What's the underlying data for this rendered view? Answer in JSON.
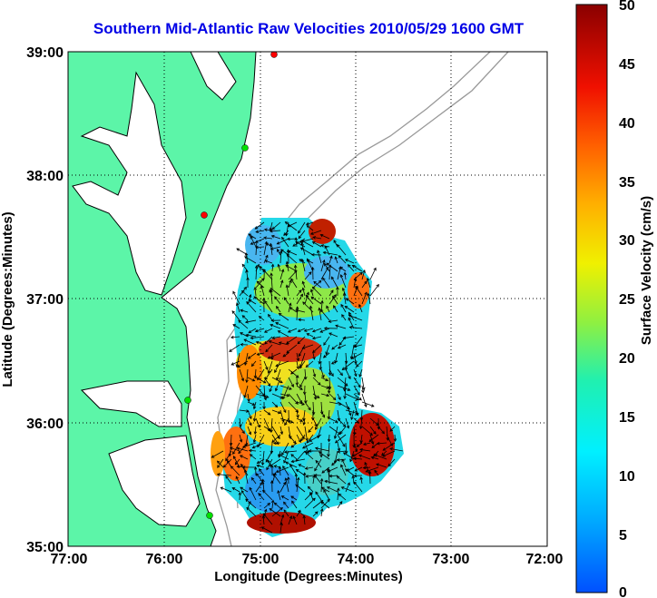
{
  "title": "Southern Mid-Atlantic Raw Velocities 2010/05/29 1600 GMT",
  "x_axis": {
    "label": "Longitude (Degrees:Minutes)",
    "ticks": [
      "77:00",
      "76:00",
      "75:00",
      "74:00",
      "73:00",
      "72:00"
    ]
  },
  "y_axis": {
    "label": "Latitude (Degrees:Minutes)",
    "ticks": [
      "39:00",
      "38:00",
      "37:00",
      "36:00",
      "35:00"
    ]
  },
  "colorbar": {
    "label": "Surface Velocity (cm/s)",
    "ticks": [
      "50",
      "45",
      "40",
      "35",
      "30",
      "25",
      "20",
      "15",
      "10",
      "5",
      "0"
    ],
    "range": [
      0,
      50
    ]
  },
  "extent": {
    "lon": [
      -77,
      -72
    ],
    "lat": [
      35,
      39
    ]
  },
  "colors": {
    "land": "#5cf5a8",
    "title": "#0000e6",
    "coast": "#000000",
    "bathymetry": "#999999"
  }
}
